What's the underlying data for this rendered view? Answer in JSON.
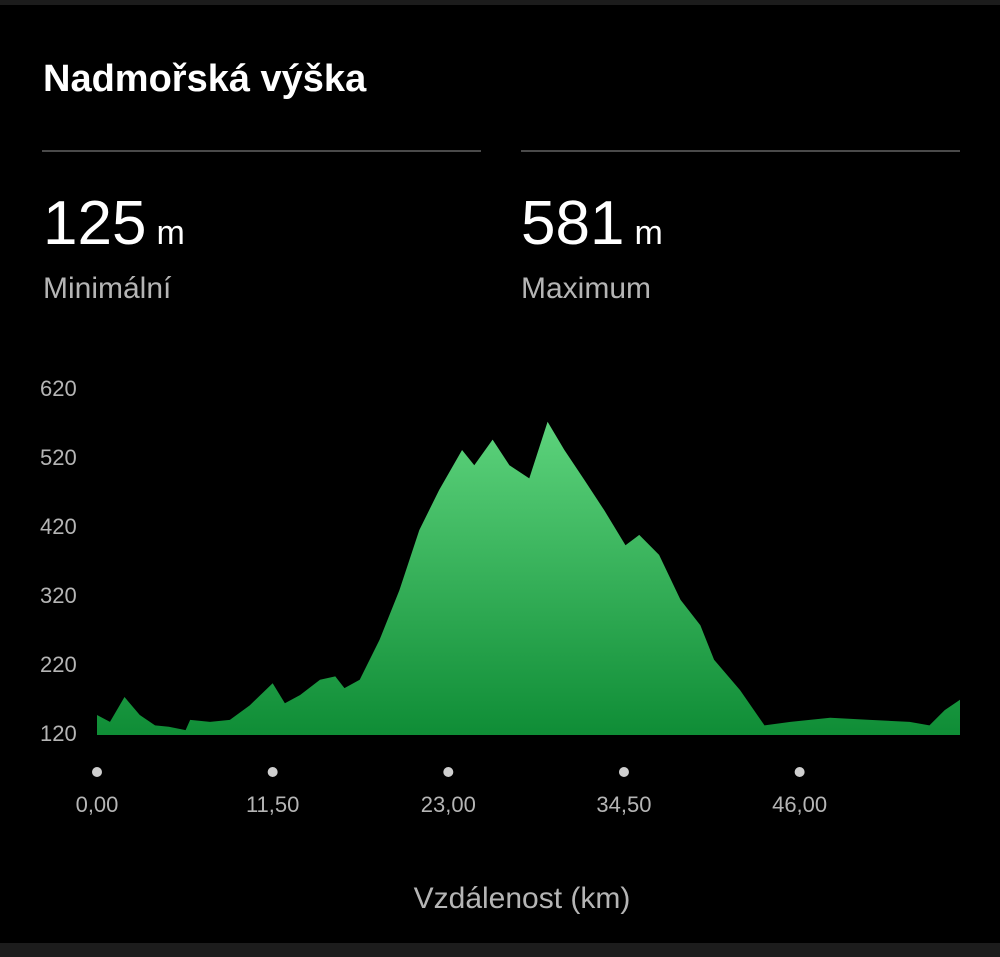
{
  "header": {
    "title": "Nadmořská výška"
  },
  "stats": [
    {
      "value": "125",
      "unit": "m",
      "label": "Minimální"
    },
    {
      "value": "581",
      "unit": "m",
      "label": "Maximum"
    }
  ],
  "chart_data": {
    "type": "area",
    "x_label": "Vzdálenost (km)",
    "x": [
      0,
      0.85,
      1.8,
      2.8,
      3.8,
      4.7,
      5.8,
      6.1,
      7.4,
      8.7,
      10,
      11.5,
      12.3,
      13.3,
      14.6,
      15.6,
      16.2,
      17.2,
      18.5,
      19.8,
      21.1,
      22.4,
      23.9,
      24.7,
      25.9,
      27,
      28.3,
      29.5,
      30.6,
      31.9,
      33.2,
      34.6,
      35.5,
      36.8,
      38.2,
      39.5,
      40.4,
      42.1,
      43.7,
      45.4,
      48,
      50.6,
      53.2,
      54.5,
      55.5,
      56.5
    ],
    "values": [
      149,
      139,
      175,
      149,
      134,
      132,
      127,
      142,
      139,
      142,
      163,
      195,
      166,
      178,
      200,
      205,
      188,
      200,
      258,
      330,
      417,
      475,
      533,
      511,
      548,
      511,
      492,
      574,
      533,
      490,
      446,
      395,
      410,
      381,
      316,
      279,
      229,
      185,
      134,
      139,
      145,
      142,
      139,
      134,
      156,
      171
    ],
    "gradient": [
      "#5dd37c",
      "#0f8d36"
    ],
    "xlim": [
      0,
      56.5
    ],
    "xticks": [
      {
        "value": 0,
        "label": "0,00"
      },
      {
        "value": 11.5,
        "label": "11,50"
      },
      {
        "value": 23,
        "label": "23,00"
      },
      {
        "value": 34.5,
        "label": "34,50"
      },
      {
        "value": 46,
        "label": "46,00"
      }
    ],
    "ylim": [
      120,
      620
    ],
    "yticks": [
      120,
      220,
      320,
      420,
      520,
      620
    ]
  }
}
